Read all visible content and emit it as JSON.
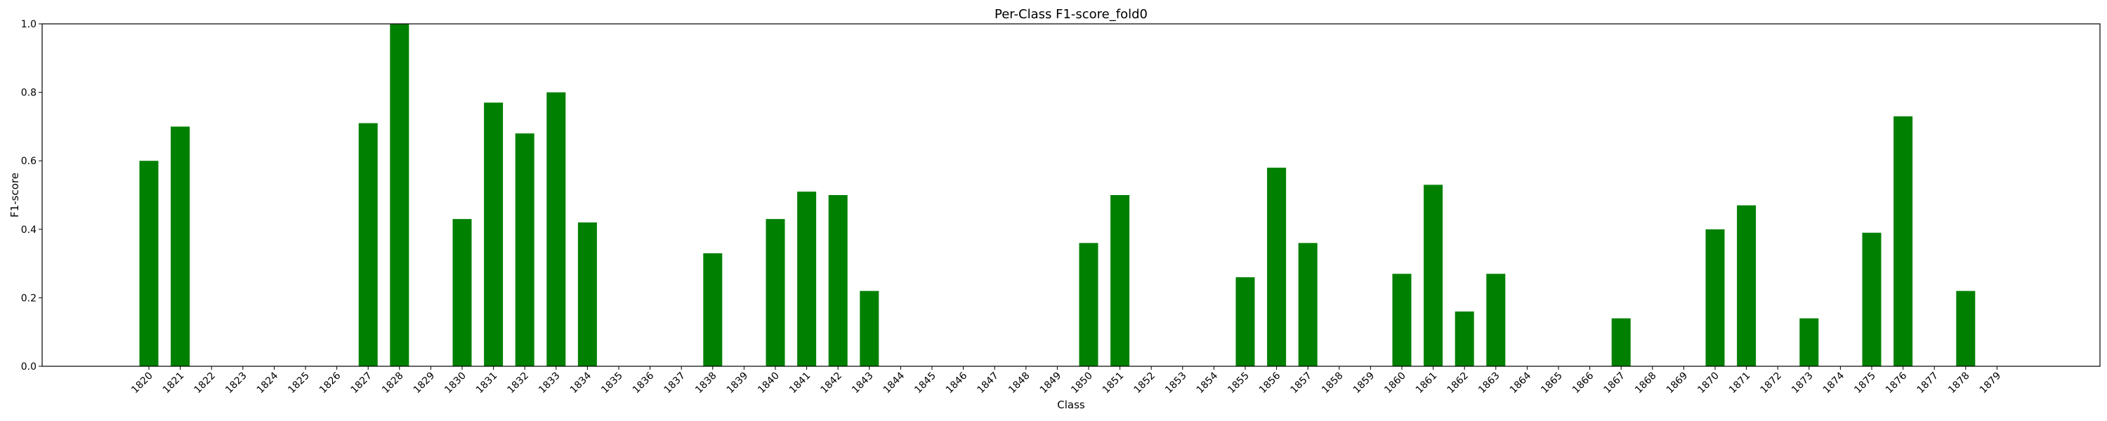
{
  "chart_data": {
    "type": "bar",
    "title": "Per-Class F1-score_fold0",
    "xlabel": "Class",
    "ylabel": "F1-score",
    "ylim": [
      0,
      1.0
    ],
    "yticks": [
      "0.0",
      "0.2",
      "0.4",
      "0.6",
      "0.8",
      "1.0"
    ],
    "grid": false,
    "bar_color": "#008000",
    "categories": [
      "1820",
      "1821",
      "1822",
      "1823",
      "1824",
      "1825",
      "1826",
      "1827",
      "1828",
      "1829",
      "1830",
      "1831",
      "1832",
      "1833",
      "1834",
      "1835",
      "1836",
      "1837",
      "1838",
      "1839",
      "1840",
      "1841",
      "1842",
      "1843",
      "1844",
      "1845",
      "1846",
      "1847",
      "1848",
      "1849",
      "1850",
      "1851",
      "1852",
      "1853",
      "1854",
      "1855",
      "1856",
      "1857",
      "1858",
      "1859",
      "1860",
      "1861",
      "1862",
      "1863",
      "1864",
      "1865",
      "1866",
      "1867",
      "1868",
      "1869",
      "1870",
      "1871",
      "1872",
      "1873",
      "1874",
      "1875",
      "1876",
      "1877",
      "1878",
      "1879"
    ],
    "values": [
      0.6,
      0.7,
      0,
      0,
      0,
      0,
      0,
      0.71,
      1.0,
      0,
      0.43,
      0.77,
      0.68,
      0.8,
      0.42,
      0,
      0,
      0,
      0.33,
      0,
      0.43,
      0.51,
      0.5,
      0.22,
      0,
      0,
      0,
      0,
      0,
      0,
      0.36,
      0.5,
      0,
      0,
      0,
      0.26,
      0.58,
      0.36,
      0,
      0,
      0.27,
      0.53,
      0.16,
      0.27,
      0,
      0,
      0,
      0.14,
      0,
      0,
      0.4,
      0.47,
      0,
      0.14,
      0,
      0.39,
      0.73,
      0,
      0.22,
      0
    ]
  }
}
